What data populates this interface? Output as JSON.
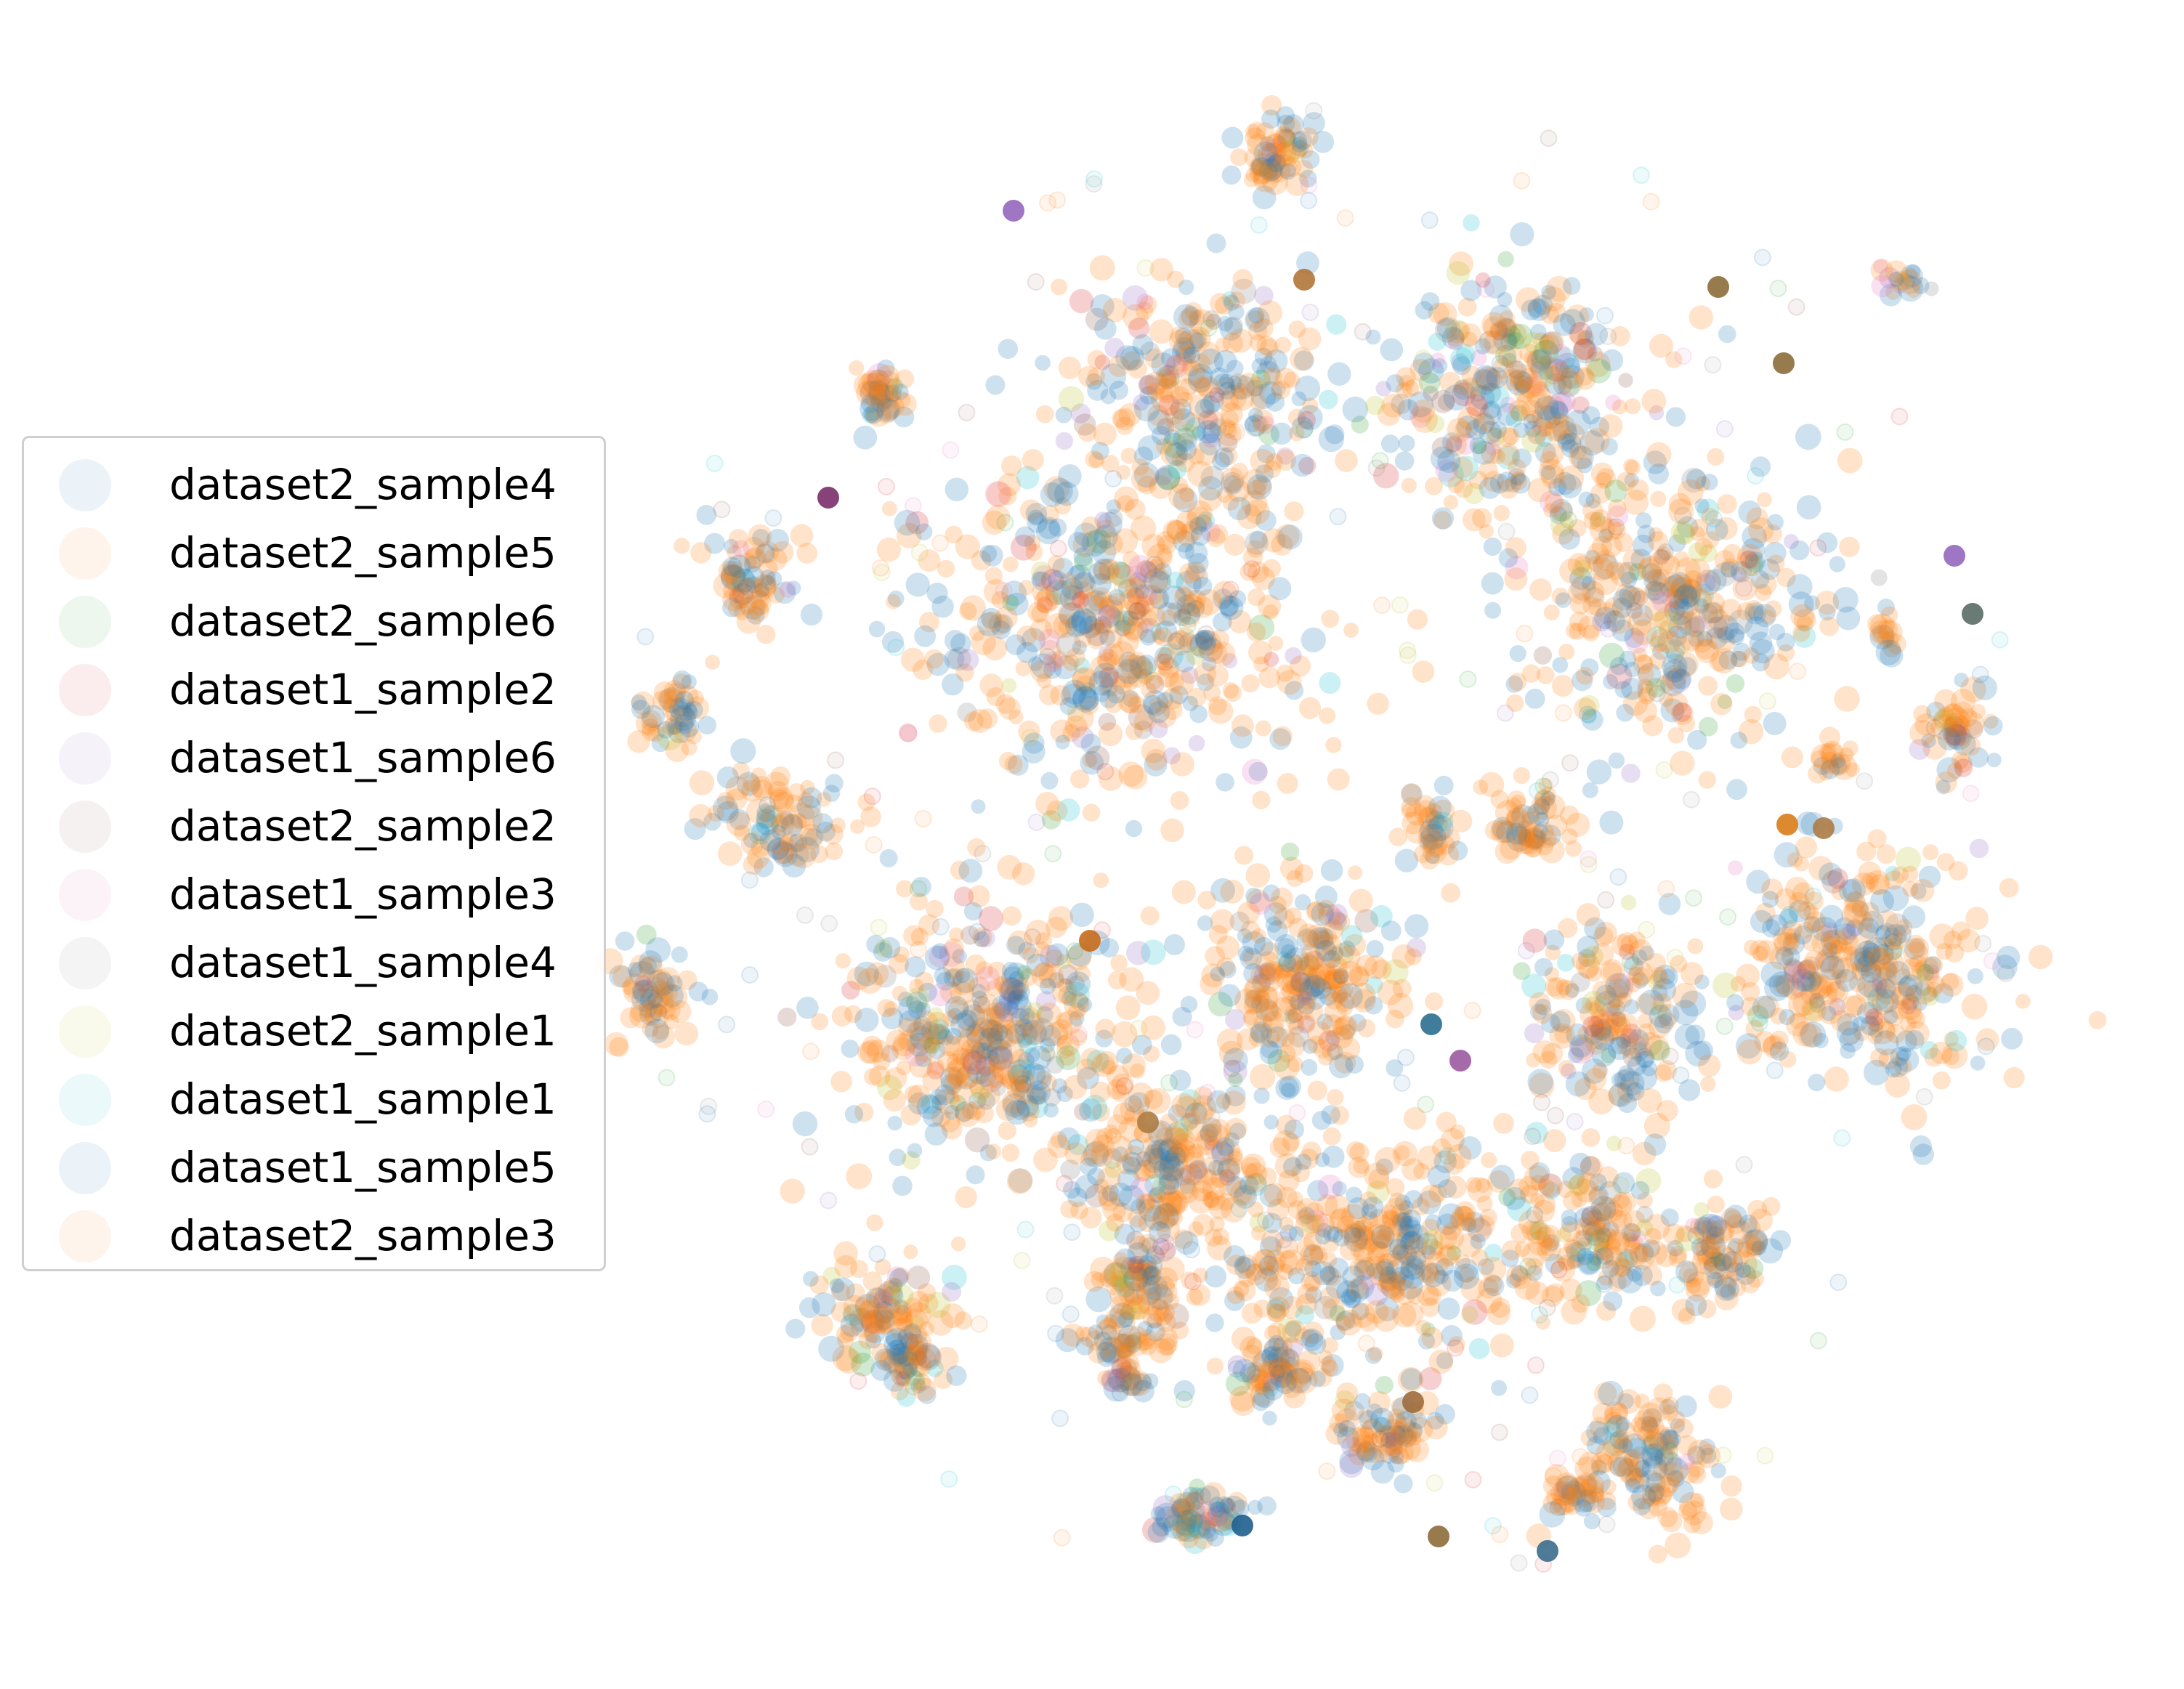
{
  "chart_data": {
    "type": "scatter",
    "title": "",
    "xlabel": "",
    "ylabel": "",
    "axes_visible": false,
    "grid": false,
    "legend_placement": "center-left",
    "series": [
      {
        "name": "dataset2_sample4",
        "color": "#1f77b4"
      },
      {
        "name": "dataset2_sample5",
        "color": "#ff7f0e"
      },
      {
        "name": "dataset2_sample6",
        "color": "#2ca02c"
      },
      {
        "name": "dataset1_sample2",
        "color": "#d62728"
      },
      {
        "name": "dataset1_sample6",
        "color": "#9467bd"
      },
      {
        "name": "dataset2_sample2",
        "color": "#8c564b"
      },
      {
        "name": "dataset1_sample3",
        "color": "#e377c2"
      },
      {
        "name": "dataset1_sample4",
        "color": "#7f7f7f"
      },
      {
        "name": "dataset2_sample1",
        "color": "#bcbd22"
      },
      {
        "name": "dataset1_sample1",
        "color": "#17becf"
      },
      {
        "name": "dataset1_sample5",
        "color": "#1f77b4"
      },
      {
        "name": "dataset2_sample3",
        "color": "#ff7f0e"
      }
    ]
  }
}
